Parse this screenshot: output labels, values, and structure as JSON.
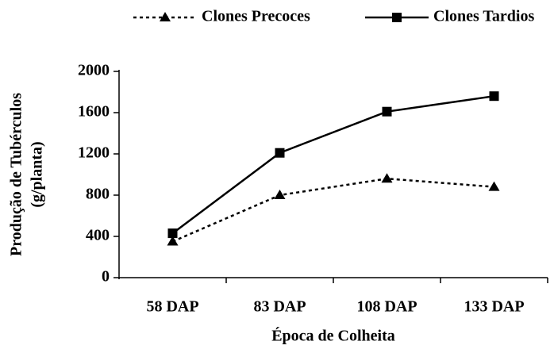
{
  "chart_data": {
    "type": "line",
    "legend": [
      "Clones Precoces",
      "Clones Tardios"
    ],
    "categories": [
      "58 DAP",
      "83 DAP",
      "108 DAP",
      "133 DAP"
    ],
    "series": [
      {
        "name": "Clones Precoces",
        "color": "#000000",
        "dash": "dotted",
        "marker": "triangle",
        "values": [
          350,
          800,
          960,
          880
        ]
      },
      {
        "name": "Clones Tardios",
        "color": "#000000",
        "dash": "solid",
        "marker": "square",
        "values": [
          430,
          1210,
          1610,
          1760
        ]
      }
    ],
    "ylabel": [
      "Produção de Tubérculos",
      "(g/planta)"
    ],
    "xlabel": "Época de Colheita",
    "ylim": [
      0,
      2000
    ],
    "yticks": [
      0,
      400,
      800,
      1200,
      1600,
      2000
    ],
    "grid": false
  }
}
